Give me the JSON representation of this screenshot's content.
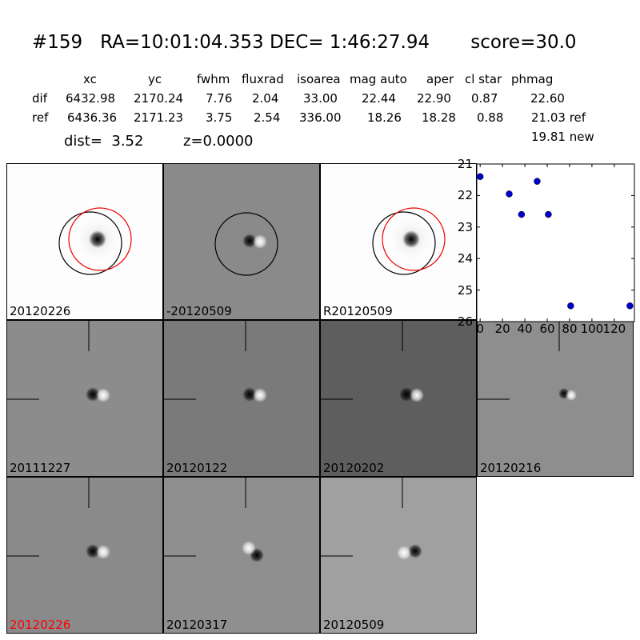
{
  "header": {
    "title": "#159   RA=10:01:04.353 DEC= 1:46:27.94       score=30.0",
    "columns": [
      "xc",
      "yc",
      "fwhm",
      "fluxrad",
      "isoarea",
      "mag auto",
      "aper",
      "cl star",
      "phmag"
    ],
    "rows": [
      {
        "label": "dif",
        "values": [
          "6432.98",
          "2170.24",
          "7.76",
          "2.04",
          "33.00",
          "22.44",
          "22.90",
          "0.87",
          "22.60"
        ]
      },
      {
        "label": "ref",
        "values": [
          "6436.36",
          "2171.23",
          "3.75",
          "2.54",
          "336.00",
          "18.26",
          "18.28",
          "0.88",
          "21.03 ref"
        ]
      }
    ],
    "extra_phmag": "19.81 new",
    "dist_text": "dist=  3.52",
    "z_text": "z=0.0000"
  },
  "stamps": [
    {
      "label": "20120226",
      "type": "ref",
      "bg": "#fdfdfd",
      "circles": [
        "black",
        "red"
      ],
      "label_color": "#000000"
    },
    {
      "label": "-20120509",
      "type": "diff_circle",
      "bg": "#8a8a8a",
      "circles": [
        "black"
      ],
      "label_color": "#000000"
    },
    {
      "label": "R20120509",
      "type": "ref",
      "bg": "#fdfdfd",
      "circles": [
        "black",
        "red"
      ],
      "label_color": "#000000"
    },
    {
      "label": "20111227",
      "type": "dipole",
      "bg": "#8c8c8c",
      "label_color": "#000000"
    },
    {
      "label": "20120122",
      "type": "dipole",
      "bg": "#7a7a7a",
      "label_color": "#000000"
    },
    {
      "label": "20120202",
      "type": "dipole",
      "bg": "#5e5e5e",
      "label_color": "#000000"
    },
    {
      "label": "20120216",
      "type": "dipole_small",
      "bg": "#8e8e8e",
      "label_color": "#000000"
    },
    {
      "label": "20120226",
      "type": "dipole",
      "bg": "#8a8a8a",
      "label_color": "#ff0000"
    },
    {
      "label": "20120317",
      "type": "dipole_inv",
      "bg": "#8f8f8f",
      "label_color": "#000000"
    },
    {
      "label": "20120509",
      "type": "dipole_rev",
      "bg": "#a0a0a0",
      "label_color": "#000000"
    }
  ],
  "chart_data": {
    "type": "scatter",
    "x": [
      0,
      26,
      37,
      51,
      61,
      81,
      134
    ],
    "y": [
      21.4,
      21.95,
      22.6,
      21.55,
      22.6,
      25.5,
      25.5
    ],
    "xlim": [
      -3,
      138
    ],
    "ylim": [
      26,
      21
    ],
    "xticks": [
      0,
      20,
      40,
      60,
      80,
      100,
      120
    ],
    "yticks": [
      21,
      22,
      23,
      24,
      25,
      26
    ],
    "marker_color": "#0000cc"
  }
}
